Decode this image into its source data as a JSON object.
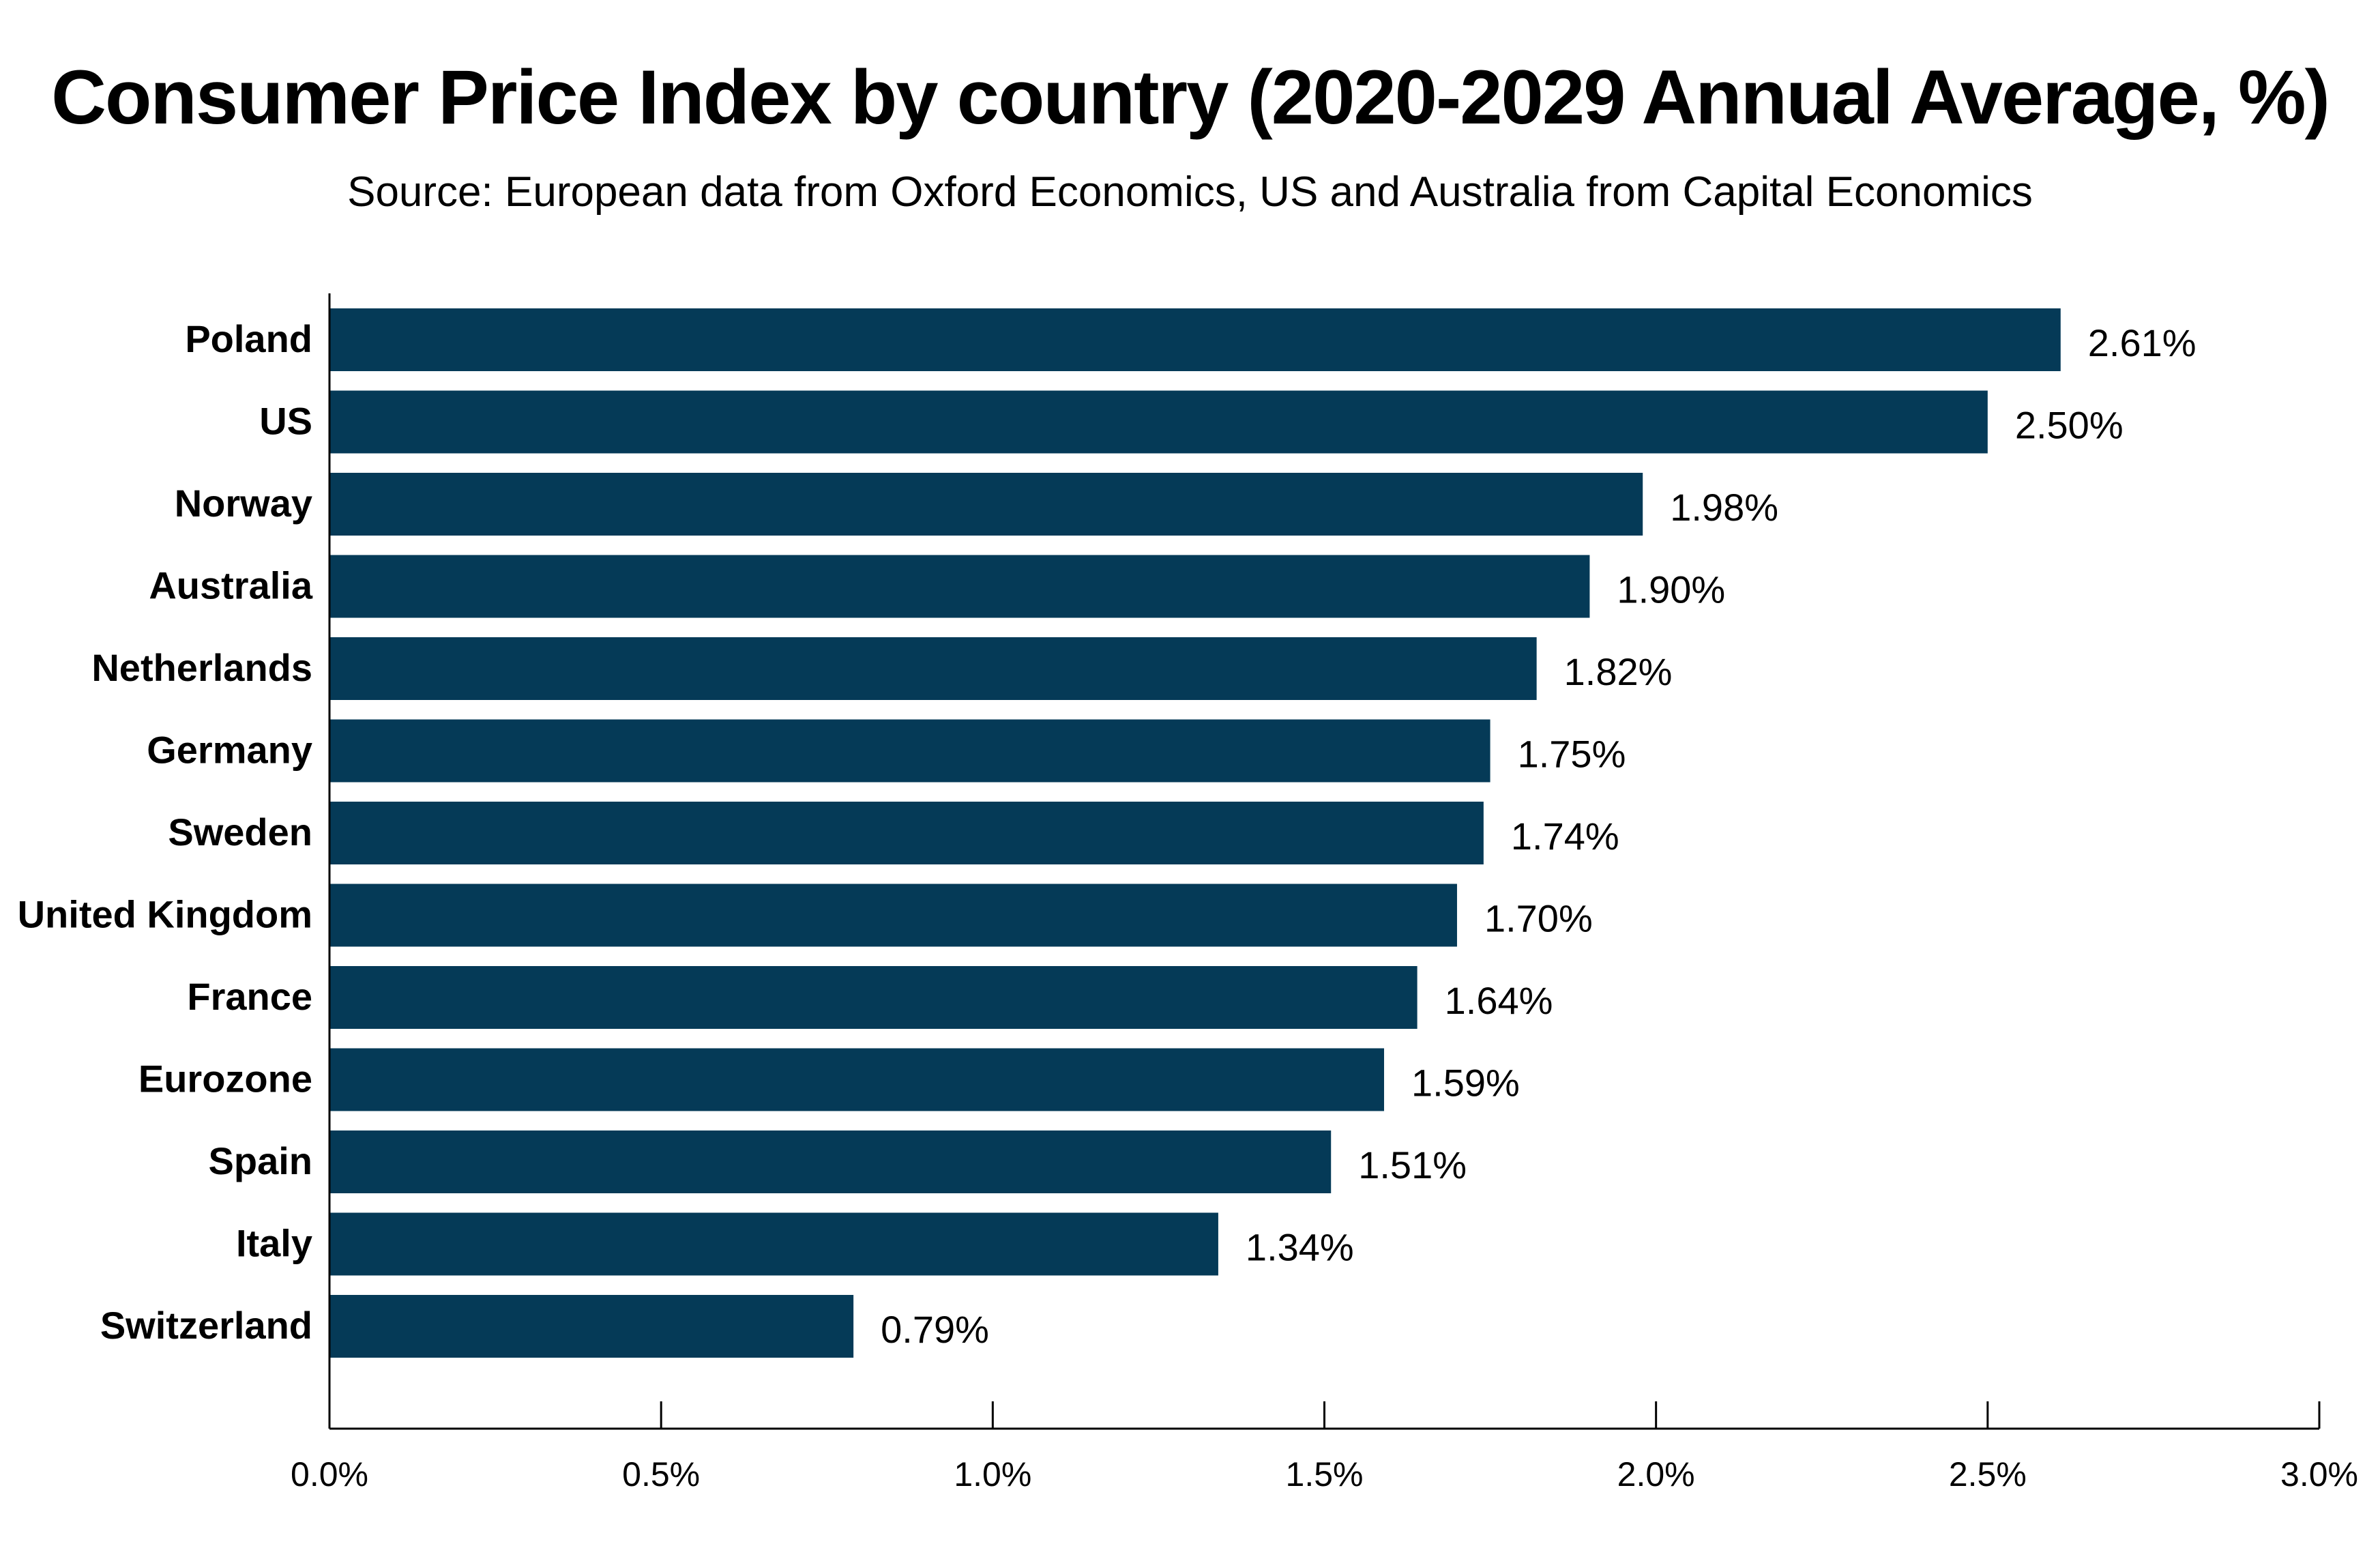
{
  "chart_data": {
    "type": "bar",
    "orientation": "horizontal",
    "title": "Consumer Price Index by country (2020-2029 Annual Average, %)",
    "subtitle": "Source: European data from Oxford Economics, US and Australia from Capital Economics",
    "categories": [
      "Poland",
      "US",
      "Norway",
      "Australia",
      "Netherlands",
      "Germany",
      "Sweden",
      "United Kingdom",
      "France",
      "Eurozone",
      "Spain",
      "Italy",
      "Switzerland"
    ],
    "values": [
      2.61,
      2.5,
      1.98,
      1.9,
      1.82,
      1.75,
      1.74,
      1.7,
      1.64,
      1.59,
      1.51,
      1.34,
      0.79
    ],
    "value_labels": [
      "2.61%",
      "2.50%",
      "1.98%",
      "1.90%",
      "1.82%",
      "1.75%",
      "1.74%",
      "1.70%",
      "1.64%",
      "1.59%",
      "1.51%",
      "1.34%",
      "0.79%"
    ],
    "xlim": [
      0,
      3.0
    ],
    "xticks": [
      0,
      0.5,
      1.0,
      1.5,
      2.0,
      2.5,
      3.0
    ],
    "xtick_labels": [
      "0.0%",
      "0.5%",
      "1.0%",
      "1.5%",
      "2.0%",
      "2.5%",
      "3.0%"
    ],
    "grid": false,
    "legend": "none",
    "bar_color": "#053a57"
  }
}
